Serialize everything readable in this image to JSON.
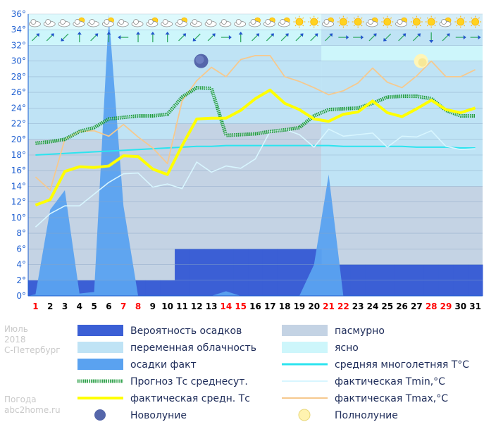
{
  "side": {
    "month": "Июль",
    "year": "2018",
    "city": "С-Петербург",
    "footer1": "Погода",
    "footer2": "abc2home.ru"
  },
  "colors": {
    "precip_prob": "#3b5fd5",
    "overcast": "#c4d3e4",
    "partly": "#bfe3f5",
    "clear": "#cdf6fb",
    "precip_fact": "#5aa2f0",
    "norm": "#2ce4ef",
    "forecast": "#1f9a3c",
    "fact_avg": "#ffff00",
    "fact_min": "#d8f6ff",
    "fact_max": "#f6c98e",
    "weekday": "#000000",
    "weekend": "#ff0000",
    "ytick": "#1e5fd1"
  },
  "chart_data": {
    "type": "line",
    "x": [
      1,
      2,
      3,
      4,
      5,
      6,
      7,
      8,
      9,
      10,
      11,
      12,
      13,
      14,
      15,
      16,
      17,
      18,
      19,
      20,
      21,
      22,
      23,
      24,
      25,
      26,
      27,
      28,
      29,
      30,
      31
    ],
    "weekend_days": [
      1,
      7,
      8,
      14,
      15,
      21,
      22,
      28,
      29
    ],
    "ylim": [
      0,
      36
    ],
    "yticks": [
      "0°",
      "2°",
      "4°",
      "6°",
      "8°",
      "10°",
      "12°",
      "14°",
      "16°",
      "18°",
      "20°",
      "22°",
      "24°",
      "26°",
      "28°",
      "30°",
      "32°",
      "34°",
      "36°"
    ],
    "grid": true,
    "background_bands": [
      {
        "kind": "overcast",
        "from_day": 1,
        "to_day": 11,
        "y": 20
      },
      {
        "kind": "overcast",
        "from_day": 11,
        "to_day": 21,
        "y": 22
      },
      {
        "kind": "partly",
        "from_day": 11,
        "to_day": 21,
        "y": 32
      },
      {
        "kind": "overcast",
        "from_day": 21,
        "to_day": 31,
        "y": 14
      },
      {
        "kind": "partly",
        "from_day": 21,
        "to_day": 31,
        "y": 30
      },
      {
        "kind": "clear",
        "from_day": 21,
        "to_day": 31,
        "y": 32
      }
    ],
    "precip_probability": [
      2,
      2,
      2,
      2,
      2,
      2,
      2,
      2,
      2,
      2,
      6,
      6,
      6,
      6,
      6,
      6,
      6,
      6,
      6,
      6,
      4,
      4,
      4,
      4,
      4,
      4,
      4,
      4,
      4,
      4,
      4
    ],
    "precip_fact": [
      0.2,
      11,
      13.5,
      0.3,
      0.5,
      36,
      11.5,
      0,
      0,
      0,
      0,
      0,
      0,
      0.6,
      0,
      0,
      0,
      0,
      0,
      4,
      15.5,
      0,
      0,
      0,
      0,
      0,
      0,
      0,
      0,
      0,
      0
    ],
    "series": [
      {
        "name": "Прогноз Тс среднесут.",
        "key": "forecast",
        "values": [
          19.5,
          19.7,
          20,
          21,
          21.5,
          22.6,
          22.8,
          23,
          23,
          23.2,
          25.4,
          26.6,
          26.5,
          20.5,
          20.6,
          20.7,
          21,
          21.2,
          21.5,
          23,
          23.8,
          23.9,
          24,
          24.6,
          25.4,
          25.5,
          25.5,
          25.2,
          23.7,
          23,
          23
        ]
      },
      {
        "name": "фактическая средн. Тс",
        "key": "fact_avg",
        "values": [
          11.6,
          12.3,
          15.9,
          16.5,
          16.4,
          16.6,
          17.9,
          17.8,
          16.2,
          15.5,
          19.2,
          22.6,
          22.7,
          22.7,
          23.7,
          25.2,
          26.3,
          24.6,
          23.8,
          22.6,
          22.3,
          23.2,
          23.5,
          24.9,
          23.4,
          22.9,
          23.9,
          25,
          23.8,
          23.4,
          24
        ]
      },
      {
        "name": "средняя многолетняя T°C",
        "key": "norm",
        "values": [
          18,
          18.1,
          18.2,
          18.3,
          18.4,
          18.5,
          18.6,
          18.7,
          18.8,
          18.9,
          19,
          19.1,
          19.1,
          19.2,
          19.2,
          19.2,
          19.2,
          19.2,
          19.2,
          19.2,
          19.2,
          19.1,
          19.1,
          19.1,
          19.1,
          19.1,
          19,
          19,
          19,
          18.9,
          18.9
        ]
      },
      {
        "name": "фактическая Tmin,°C",
        "key": "fact_min",
        "values": [
          8.8,
          10.5,
          11.5,
          11.5,
          13,
          14.5,
          15.6,
          15.7,
          13.9,
          14.3,
          13.7,
          17.1,
          15.8,
          16.6,
          16.3,
          17.5,
          21,
          21.3,
          20.6,
          19,
          21.3,
          20.4,
          20.6,
          20.8,
          19,
          20.4,
          20.3,
          21.1,
          19.1,
          18.7,
          18.8
        ]
      },
      {
        "name": "фактическая Tmax,°C",
        "key": "fact_max",
        "values": [
          15.2,
          13.5,
          20,
          21,
          21.1,
          20.4,
          21.9,
          20.3,
          18.9,
          16.9,
          24.9,
          27.5,
          29.2,
          28,
          30.2,
          30.7,
          30.7,
          28,
          27.4,
          26.6,
          25.7,
          26.2,
          27.2,
          29.1,
          27.3,
          26.6,
          28.1,
          30,
          28,
          28,
          28.9
        ]
      }
    ],
    "moon": [
      {
        "type": "new",
        "day": 13,
        "y": 30
      },
      {
        "type": "full",
        "day": 28,
        "y": 30
      }
    ]
  },
  "legend": [
    {
      "key": "precip_prob",
      "kind": "box",
      "label": "Вероятность осадков"
    },
    {
      "key": "overcast",
      "kind": "box",
      "label": "пасмурно"
    },
    {
      "key": "partly",
      "kind": "box",
      "label": "переменная облачность"
    },
    {
      "key": "clear",
      "kind": "box",
      "label": "ясно"
    },
    {
      "key": "precip_fact",
      "kind": "box",
      "label": "осадки факт"
    },
    {
      "key": "norm",
      "kind": "line",
      "label": "средняя многолетняя T°C"
    },
    {
      "key": "forecast",
      "kind": "dotted",
      "label": "Прогноз Тс среднесут."
    },
    {
      "key": "fact_min",
      "kind": "line",
      "label": "фактическая Tmin,°C"
    },
    {
      "key": "fact_avg",
      "kind": "line",
      "label": "фактическая средн. Тс"
    },
    {
      "key": "fact_max",
      "kind": "line",
      "label": "фактическая Tmax,°C"
    },
    {
      "key": "new_moon",
      "kind": "moon-new",
      "label": "Новолуние"
    },
    {
      "key": "full_moon",
      "kind": "moon-full",
      "label": "Полнолуние"
    }
  ],
  "icons": {
    "weather_row": [
      "cloud-icon",
      "cloud-icon",
      "cloud-icon",
      "sun-cloud-icon",
      "cloud-icon",
      "sun-cloud-icon",
      "cloud-icon",
      "cloud-icon",
      "sun-cloud-icon",
      "cloud-icon",
      "sun-cloud-icon",
      "cloud-icon",
      "cloud-icon",
      "cloud-icon",
      "cloud-icon",
      "sun-cloud-icon",
      "sun-cloud-icon",
      "sun-cloud-icon",
      "sun-icon",
      "sun-icon",
      "sun-cloud-icon",
      "sun-icon",
      "sun-icon",
      "sun-cloud-icon",
      "sun-icon",
      "sun-cloud-icon",
      "sun-icon",
      "sun-icon",
      "sun-cloud-icon",
      "sun-icon",
      "sun-icon"
    ],
    "wind_row": [
      "wind-arrow-icon",
      "wind-arrow-icon",
      "wind-arrow-icon",
      "wind-arrow-icon",
      "wind-arrow-icon",
      "wind-arrow-icon",
      "wind-arrow-icon",
      "wind-arrow-icon",
      "wind-arrow-icon",
      "wind-arrow-icon",
      "wind-arrow-icon",
      "wind-arrow-icon",
      "wind-arrow-icon",
      "wind-arrow-icon",
      "wind-arrow-icon",
      "wind-arrow-icon",
      "wind-arrow-icon",
      "wind-arrow-icon",
      "wind-arrow-icon",
      "wind-arrow-icon",
      "wind-arrow-icon",
      "wind-arrow-icon",
      "wind-arrow-icon",
      "wind-arrow-icon",
      "wind-arrow-icon",
      "wind-arrow-icon",
      "wind-arrow-icon",
      "wind-arrow-icon",
      "wind-arrow-icon",
      "wind-arrow-icon",
      "wind-arrow-icon"
    ],
    "wind_dir_deg": [
      225,
      225,
      45,
      180,
      225,
      180,
      90,
      180,
      180,
      180,
      225,
      45,
      225,
      270,
      180,
      225,
      225,
      225,
      225,
      225,
      225,
      270,
      270,
      225,
      45,
      225,
      225,
      0,
      225,
      270,
      270
    ]
  }
}
